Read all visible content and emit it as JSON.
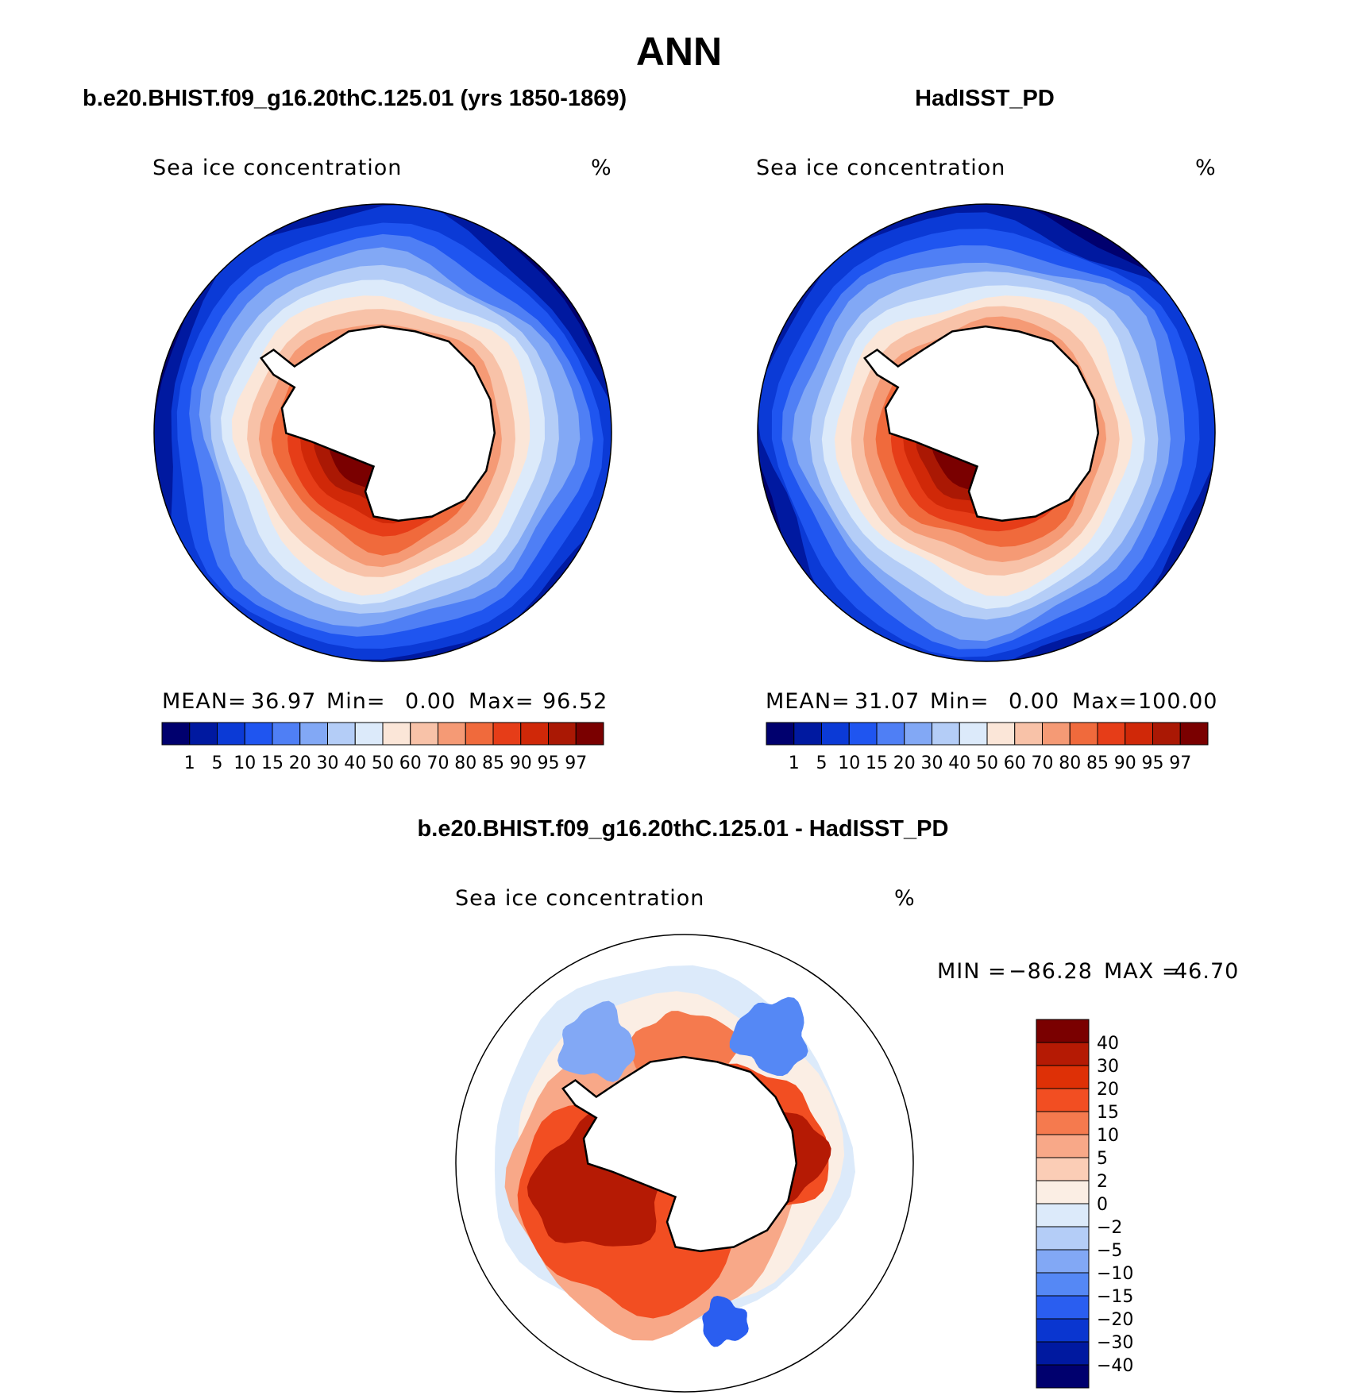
{
  "page": {
    "title": "ANN"
  },
  "panels": [
    {
      "id": "model",
      "subtitle": "b.e20.BHIST.f09_g16.20thC.125.01 (yrs 1850-1869)",
      "variable": "Sea ice concentration",
      "units": "%",
      "stats": {
        "mean_label": "MEAN=",
        "mean": "36.97",
        "min_label": "Min=",
        "min": "0.00",
        "max_label": "Max=",
        "max": "96.52"
      }
    },
    {
      "id": "obs",
      "subtitle": "HadISST_PD",
      "variable": "Sea ice concentration",
      "units": "%",
      "stats": {
        "mean_label": "MEAN=",
        "mean": "31.07",
        "min_label": "Min=",
        "min": "0.00",
        "max_label": "Max=",
        "max": "100.00"
      }
    },
    {
      "id": "diff",
      "subtitle": "b.e20.BHIST.f09_g16.20thC.125.01 - HadISST_PD",
      "variable": "Sea ice concentration",
      "units": "%",
      "stats": {
        "min_label": "MIN =",
        "min": "−86.28",
        "max_label": "MAX =",
        "max": "46.70"
      }
    }
  ],
  "chart_data": [
    {
      "type": "heatmap",
      "projection": "south-polar-stereographic",
      "panel": "model",
      "colorbar": {
        "orientation": "horizontal",
        "levels": [
          "1",
          "5",
          "10",
          "15",
          "20",
          "30",
          "40",
          "50",
          "60",
          "70",
          "80",
          "85",
          "90",
          "95",
          "97"
        ],
        "colors": [
          "#00006e",
          "#0019a0",
          "#0b3ad6",
          "#1f55f0",
          "#4f7ff5",
          "#82a8f5",
          "#b4cdf7",
          "#dceafa",
          "#fbe6d8",
          "#f8c2a8",
          "#f59a75",
          "#f06a3c",
          "#e63d18",
          "#d02808",
          "#aa1804",
          "#7a0000"
        ]
      }
    },
    {
      "type": "heatmap",
      "projection": "south-polar-stereographic",
      "panel": "obs",
      "colorbar": {
        "orientation": "horizontal",
        "levels": [
          "1",
          "5",
          "10",
          "15",
          "20",
          "30",
          "40",
          "50",
          "60",
          "70",
          "80",
          "85",
          "90",
          "95",
          "97"
        ],
        "colors": [
          "#00006e",
          "#0019a0",
          "#0b3ad6",
          "#1f55f0",
          "#4f7ff5",
          "#82a8f5",
          "#b4cdf7",
          "#dceafa",
          "#fbe6d8",
          "#f8c2a8",
          "#f59a75",
          "#f06a3c",
          "#e63d18",
          "#d02808",
          "#aa1804",
          "#7a0000"
        ]
      }
    },
    {
      "type": "heatmap",
      "projection": "south-polar-stereographic",
      "panel": "diff",
      "colorbar": {
        "orientation": "vertical",
        "levels": [
          "40",
          "30",
          "20",
          "15",
          "10",
          "5",
          "2",
          "0",
          "−2",
          "−5",
          "−10",
          "−15",
          "−20",
          "−30",
          "−40"
        ],
        "colors": [
          "#7a0000",
          "#b51a04",
          "#de3006",
          "#f24e22",
          "#f57a4e",
          "#f8a888",
          "#fbcdb6",
          "#fbeee4",
          "#dceafa",
          "#b4cdf7",
          "#82a8f5",
          "#5588f5",
          "#2a5ef0",
          "#0a36d0",
          "#0019a0",
          "#00006e"
        ]
      }
    }
  ]
}
